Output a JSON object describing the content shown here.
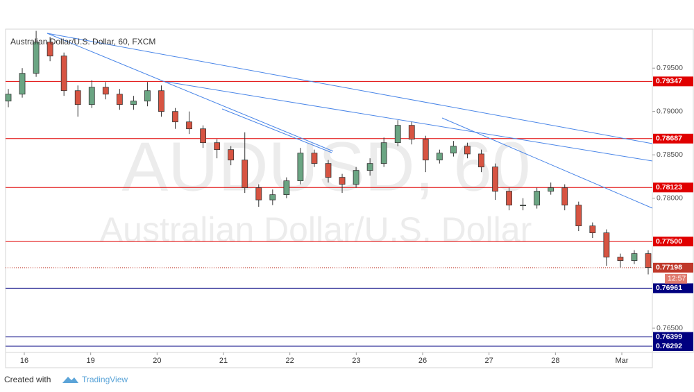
{
  "chart_data": {
    "type": "candlestick",
    "title": "Australian Dollar/U.S. Dollar, 60, FXCM",
    "watermark": [
      "AUDUSD, 60",
      "Australian Dollar/U.S. Dollar"
    ],
    "categories": [
      "16",
      "19",
      "20",
      "21",
      "22",
      "23",
      "26",
      "27",
      "28",
      "Mar"
    ],
    "open": [
      0.7912,
      0.792,
      0.7944,
      0.798,
      0.7964,
      0.7924,
      0.7908,
      0.7928,
      0.792,
      0.7908,
      0.7912,
      0.7924,
      0.79,
      0.7888,
      0.788,
      0.7864,
      0.7856,
      0.7844,
      0.7812,
      0.7798,
      0.7804,
      0.782,
      0.7852,
      0.784,
      0.7824,
      0.7816,
      0.7832,
      0.784,
      0.7864,
      0.7884,
      0.7868,
      0.7844,
      0.7852,
      0.786,
      0.7851,
      0.7836,
      0.7808,
      0.7792,
      0.7792,
      0.7808,
      0.7812,
      0.7792,
      0.7768,
      0.776,
      0.7732,
      0.7728,
      0.7736
    ],
    "high": [
      0.7926,
      0.795,
      0.7993,
      0.7986,
      0.7968,
      0.793,
      0.7936,
      0.7934,
      0.7926,
      0.7918,
      0.7934,
      0.793,
      0.7904,
      0.79,
      0.7884,
      0.7868,
      0.786,
      0.7876,
      0.7816,
      0.781,
      0.7824,
      0.7858,
      0.7856,
      0.7844,
      0.7828,
      0.7836,
      0.7846,
      0.787,
      0.789,
      0.7888,
      0.7872,
      0.7856,
      0.7866,
      0.7864,
      0.7856,
      0.784,
      0.7812,
      0.78,
      0.7812,
      0.7818,
      0.7816,
      0.7796,
      0.7772,
      0.7764,
      0.7736,
      0.774,
      0.774
    ],
    "low": [
      0.7905,
      0.7916,
      0.794,
      0.7958,
      0.7918,
      0.7894,
      0.7904,
      0.7914,
      0.7902,
      0.7902,
      0.7906,
      0.7894,
      0.788,
      0.7874,
      0.7858,
      0.7846,
      0.7838,
      0.7806,
      0.779,
      0.7792,
      0.78,
      0.7816,
      0.7836,
      0.7818,
      0.7806,
      0.7812,
      0.7826,
      0.7836,
      0.786,
      0.7862,
      0.783,
      0.784,
      0.7848,
      0.7846,
      0.783,
      0.7798,
      0.7786,
      0.7786,
      0.7788,
      0.7804,
      0.7786,
      0.7762,
      0.7754,
      0.7722,
      0.772,
      0.7724,
      0.7712
    ],
    "close": [
      0.792,
      0.7944,
      0.798,
      0.7964,
      0.7924,
      0.7908,
      0.7928,
      0.792,
      0.7908,
      0.7912,
      0.7924,
      0.79,
      0.7888,
      0.788,
      0.7864,
      0.7856,
      0.7844,
      0.7812,
      0.7798,
      0.7804,
      0.782,
      0.7852,
      0.784,
      0.7824,
      0.7816,
      0.7832,
      0.784,
      0.7864,
      0.7884,
      0.7868,
      0.7844,
      0.7852,
      0.786,
      0.7851,
      0.7836,
      0.7808,
      0.7792,
      0.7792,
      0.7808,
      0.7812,
      0.7792,
      0.7768,
      0.776,
      0.7732,
      0.7728,
      0.7736,
      0.772
    ],
    "up_color": "#6ba583",
    "down_color": "#d75442",
    "ylim": [
      0.7622,
      0.7995
    ],
    "yticks": [
      {
        "value": 0.795,
        "label": "0.79500"
      },
      {
        "value": 0.79,
        "label": "0.79000"
      },
      {
        "value": 0.785,
        "label": "0.78500"
      },
      {
        "value": 0.78,
        "label": "0.78000"
      },
      {
        "value": 0.765,
        "label": "0.76500"
      }
    ],
    "levels": [
      {
        "value": 0.79347,
        "color": "#e00000"
      },
      {
        "value": 0.78687,
        "color": "#e00000"
      },
      {
        "value": 0.78123,
        "color": "#e00000"
      },
      {
        "value": {
          "value": 0.775,
          "label": "0.77500"
        },
        "color": "#e00000"
      },
      {
        "value": 0.76961,
        "color": "#000080"
      },
      {
        "value": 0.76399,
        "color": "#000080"
      },
      {
        "value": 0.76292,
        "color": "#000080"
      }
    ],
    "last_price": 0.77198,
    "last_color": "#c0392b",
    "countdown": "12:57",
    "footer": [
      "Created with",
      "TradingView"
    ]
  }
}
